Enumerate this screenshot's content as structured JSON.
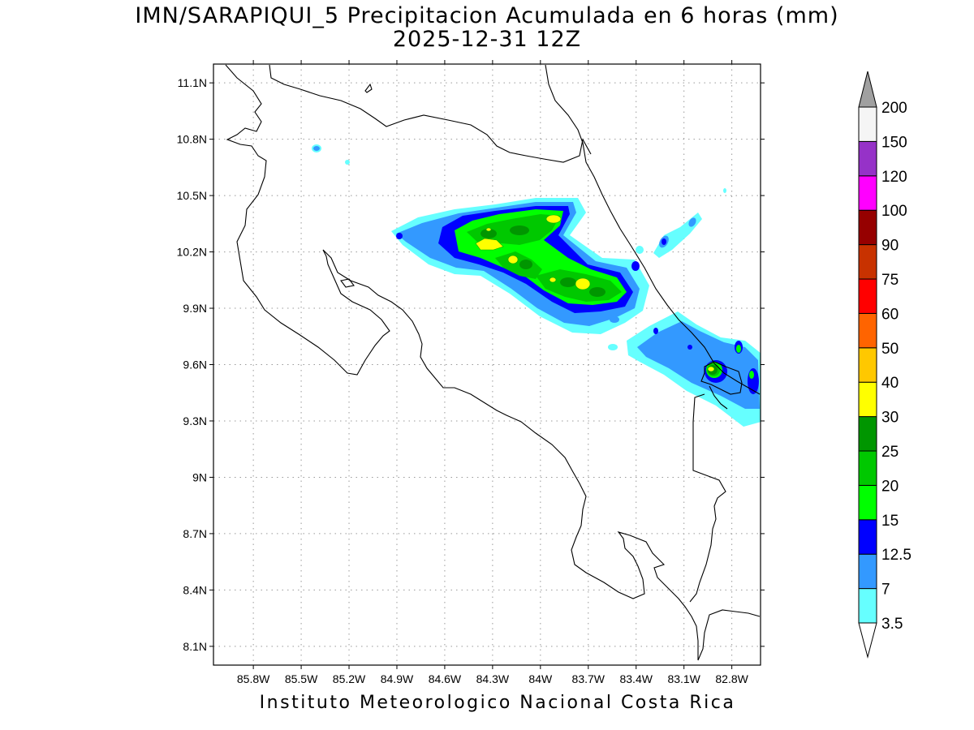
{
  "title": {
    "line1": "IMN/SARAPIQUI_5 Precipitacion Acumulada en 6 horas (mm)",
    "line2": "2025-12-31 12Z"
  },
  "footer": "Instituto Meteorologico Nacional Costa Rica",
  "map": {
    "variable": "6-hour accumulated precipitation",
    "units": "mm",
    "extent": {
      "lon": [
        -86.05,
        -82.62
      ],
      "lat": [
        8.0,
        11.2
      ]
    },
    "lon_ticks": [
      {
        "value": -85.8,
        "label": "85.8W"
      },
      {
        "value": -85.5,
        "label": "85.5W"
      },
      {
        "value": -85.2,
        "label": "85.2W"
      },
      {
        "value": -84.9,
        "label": "84.9W"
      },
      {
        "value": -84.6,
        "label": "84.6W"
      },
      {
        "value": -84.3,
        "label": "84.3W"
      },
      {
        "value": -84.0,
        "label": "84W"
      },
      {
        "value": -83.7,
        "label": "83.7W"
      },
      {
        "value": -83.4,
        "label": "83.4W"
      },
      {
        "value": -83.1,
        "label": "83.1W"
      },
      {
        "value": -82.8,
        "label": "82.8W"
      }
    ],
    "lat_ticks": [
      {
        "value": 11.1,
        "label": "11.1N"
      },
      {
        "value": 10.8,
        "label": "10.8N"
      },
      {
        "value": 10.5,
        "label": "10.5N"
      },
      {
        "value": 10.2,
        "label": "10.2N"
      },
      {
        "value": 9.9,
        "label": "9.9N"
      },
      {
        "value": 9.6,
        "label": "9.6N"
      },
      {
        "value": 9.3,
        "label": "9.3N"
      },
      {
        "value": 9.0,
        "label": "9N"
      },
      {
        "value": 8.7,
        "label": "8.7N"
      },
      {
        "value": 8.4,
        "label": "8.4N"
      },
      {
        "value": 8.1,
        "label": "8.1N"
      }
    ],
    "grid": true
  },
  "colorbar": {
    "placement": "right",
    "labels": [
      "3.5",
      "7",
      "12.5",
      "15",
      "20",
      "25",
      "30",
      "40",
      "50",
      "60",
      "75",
      "90",
      "100",
      "120",
      "150",
      "200"
    ],
    "colors": [
      "#66ffff",
      "#3399ff",
      "#0000ff",
      "#00ff00",
      "#00c800",
      "#009600",
      "#ffff00",
      "#ffc800",
      "#ff6400",
      "#ff0000",
      "#c83200",
      "#960000",
      "#ff00ff",
      "#9632c8",
      "#f5f5f5"
    ],
    "overflow_top_color": "#a0a0a0",
    "underflow_bottom_color": "#ffffff"
  },
  "precip_features": [
    {
      "level": 1,
      "lon": -84.3,
      "lat": 10.3
    },
    {
      "level": 4,
      "lon": -84.3,
      "lat": 10.37
    },
    {
      "level": 6,
      "lon": -84.1,
      "lat": 10.41
    },
    {
      "level": 6,
      "lon": -83.73,
      "lat": 10.12
    },
    {
      "level": 5,
      "lon": -82.8,
      "lat": 9.62
    },
    {
      "level": 1,
      "lon": -82.9,
      "lat": 9.62
    }
  ]
}
